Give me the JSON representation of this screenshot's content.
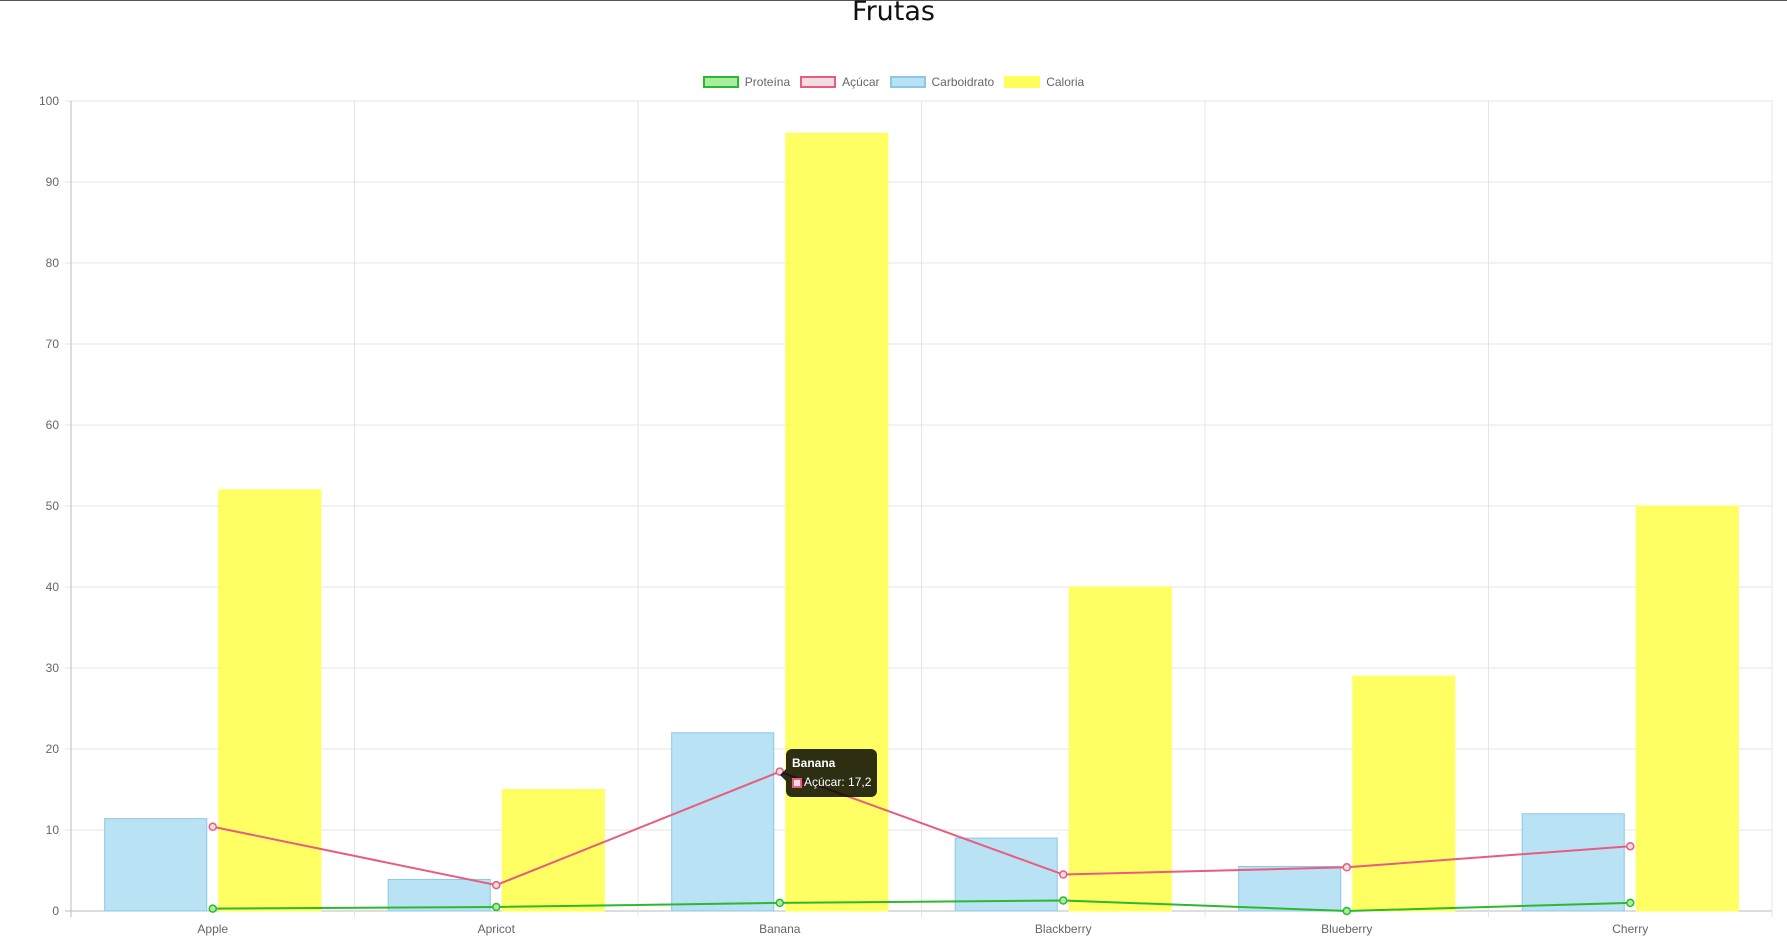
{
  "chart_data": {
    "type": "bar",
    "title": "Frutas",
    "categories": [
      "Apple",
      "Apricot",
      "Banana",
      "Blackberry",
      "Blueberry",
      "Cherry"
    ],
    "series": [
      {
        "name": "Proteína",
        "type": "line",
        "color": "#2eb82e",
        "fill": "#a8eea0",
        "values": [
          0.3,
          0.5,
          1.0,
          1.3,
          0.0,
          1.0
        ]
      },
      {
        "name": "Açúcar",
        "type": "line",
        "color": "#e85d7e",
        "fill": "#f1dde2",
        "values": [
          10.4,
          3.2,
          17.2,
          4.5,
          5.4,
          8.0
        ]
      },
      {
        "name": "Carboidrato",
        "type": "bar",
        "color": "#b9e2f4",
        "border": "#8cc7e6",
        "values": [
          11.4,
          3.9,
          22.0,
          9.0,
          5.5,
          12.0
        ]
      },
      {
        "name": "Caloria",
        "type": "bar",
        "color": "#ffff5c",
        "border": "#ffff5c",
        "values": [
          52,
          15,
          96,
          40,
          29,
          50
        ]
      }
    ],
    "ylim": [
      0,
      100
    ],
    "yticks": [
      0,
      10,
      20,
      30,
      40,
      50,
      60,
      70,
      80,
      90,
      100
    ],
    "legend": "top-center",
    "grid": true
  },
  "tooltip": {
    "title": "Banana",
    "text": "Açúcar: 17,2"
  }
}
